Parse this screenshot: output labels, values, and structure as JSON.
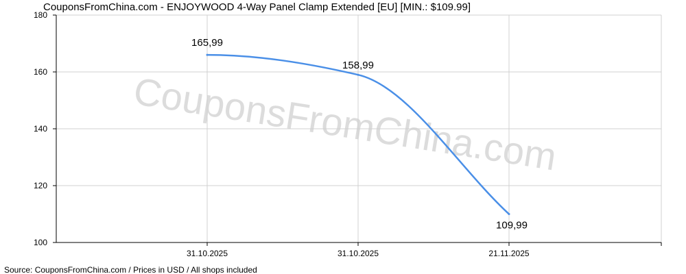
{
  "chart_data": {
    "type": "line",
    "title": "CouponsFromChina.com - ENJOYWOOD 4-Way Panel Clamp Extended [EU] [MIN.: $109.99]",
    "x": [
      "31.10.2025",
      "31.10.2025",
      "21.11.2025"
    ],
    "series": [
      {
        "values": [
          165.99,
          158.99,
          109.99
        ],
        "labels": [
          "165,99",
          "158,99",
          "109,99"
        ],
        "color": "#4a8fe7"
      }
    ],
    "y_ticks": [
      "100",
      "120",
      "140",
      "160",
      "180"
    ],
    "ylim": [
      100,
      180
    ],
    "grid": true,
    "watermark": "CouponsFromChina.com",
    "source_note": "Source: CouponsFromChina.com / Prices in USD / All shops included"
  }
}
